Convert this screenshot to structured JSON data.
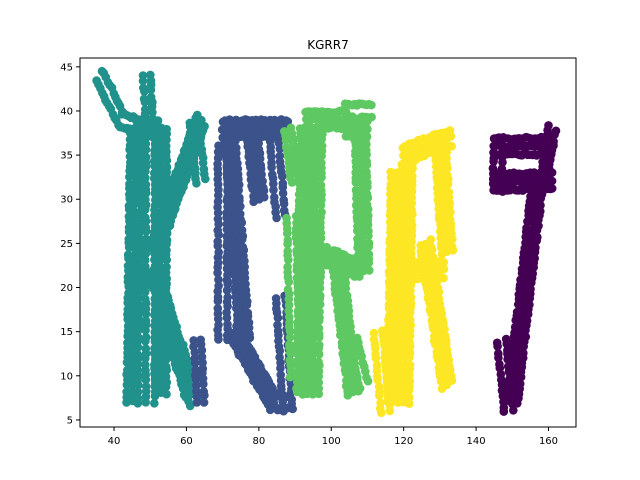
{
  "chart_data": {
    "type": "scatter",
    "title": "KGRR7",
    "xlabel": "",
    "ylabel": "",
    "xlim": [
      30.6,
      167.6
    ],
    "ylim": [
      4.2,
      46.0
    ],
    "xticks": [
      40,
      60,
      80,
      100,
      120,
      140,
      160
    ],
    "yticks": [
      5,
      10,
      15,
      20,
      25,
      30,
      35,
      40,
      45
    ],
    "grid": false,
    "legend": "none",
    "series": [
      {
        "color": "#21918c",
        "strokes": [
          {
            "from": [
              36,
              44
            ],
            "to": [
              42,
              39
            ],
            "width": 2.5
          },
          {
            "from": [
              42,
              39
            ],
            "to": [
              48,
              38
            ],
            "width": 2.5
          },
          {
            "from": [
              49,
              44
            ],
            "to": [
              50,
              38
            ],
            "width": 2.0
          },
          {
            "from": [
              46,
              38
            ],
            "to": [
              52,
              38
            ],
            "width": 3.0
          },
          {
            "from": [
              46,
              38
            ],
            "to": [
              45,
              7
            ],
            "width": 3.0
          },
          {
            "from": [
              53,
              38
            ],
            "to": [
              53,
              8
            ],
            "width": 3.0
          },
          {
            "from": [
              50,
              38
            ],
            "to": [
              50,
              7
            ],
            "width": 2.5
          },
          {
            "from": [
              51,
              24
            ],
            "to": [
              64,
              39
            ],
            "width": 3.0
          },
          {
            "from": [
              62,
              39
            ],
            "to": [
              64,
              32
            ],
            "width": 2.5
          },
          {
            "from": [
              51,
              22
            ],
            "to": [
              61,
              8
            ],
            "width": 3.0
          },
          {
            "from": [
              58,
              13
            ],
            "to": [
              62,
              7
            ],
            "width": 2.5
          }
        ]
      },
      {
        "color": "#3b528b",
        "strokes": [
          {
            "from": [
              70,
              38
            ],
            "to": [
              88,
              38
            ],
            "width": 3.0
          },
          {
            "from": [
              70,
              36
            ],
            "to": [
              70,
              14
            ],
            "width": 2.5
          },
          {
            "from": [
              72,
              37
            ],
            "to": [
              76,
              14
            ],
            "width": 3.0
          },
          {
            "from": [
              78,
              38
            ],
            "to": [
              80,
              30
            ],
            "width": 3.0
          },
          {
            "from": [
              84,
              38
            ],
            "to": [
              86,
              28
            ],
            "width": 2.5
          },
          {
            "from": [
              73,
              15
            ],
            "to": [
              84,
              7
            ],
            "width": 3.0
          },
          {
            "from": [
              84,
              7
            ],
            "to": [
              88,
              7
            ],
            "width": 2.5
          },
          {
            "from": [
              86,
              19
            ],
            "to": [
              88,
              6
            ],
            "width": 2.5
          },
          {
            "from": [
              63,
              14
            ],
            "to": [
              64,
              7
            ],
            "width": 2.0
          }
        ]
      },
      {
        "color": "#5ec962",
        "strokes": [
          {
            "from": [
              88,
              38
            ],
            "to": [
              90,
              32
            ],
            "width": 2.0
          },
          {
            "from": [
              93,
              39
            ],
            "to": [
              104,
              39
            ],
            "width": 3.0
          },
          {
            "from": [
              104,
              40
            ],
            "to": [
              111,
              40
            ],
            "width": 2.5
          },
          {
            "from": [
              93,
              38
            ],
            "to": [
              92,
              8
            ],
            "width": 3.0
          },
          {
            "from": [
              96,
              38
            ],
            "to": [
              95,
              8
            ],
            "width": 3.0
          },
          {
            "from": [
              89,
              28
            ],
            "to": [
              90,
              10
            ],
            "width": 2.5
          },
          {
            "from": [
              104,
              38
            ],
            "to": [
              110,
              38
            ],
            "width": 3.0
          },
          {
            "from": [
              108,
              38
            ],
            "to": [
              109,
              22
            ],
            "width": 3.0
          },
          {
            "from": [
              96,
              24
            ],
            "to": [
              108,
              22
            ],
            "width": 3.0
          },
          {
            "from": [
              102,
              22
            ],
            "to": [
              106,
              8
            ],
            "width": 3.0
          },
          {
            "from": [
              106,
              14
            ],
            "to": [
              109,
              9
            ],
            "width": 2.5
          }
        ]
      },
      {
        "color": "#fde725",
        "strokes": [
          {
            "from": [
              120,
              35
            ],
            "to": [
              133,
              37
            ],
            "width": 3.0
          },
          {
            "from": [
              118,
              33
            ],
            "to": [
              117,
              7
            ],
            "width": 3.0
          },
          {
            "from": [
              121,
              34
            ],
            "to": [
              120,
              7
            ],
            "width": 3.0
          },
          {
            "from": [
              130,
              37
            ],
            "to": [
              132,
              24
            ],
            "width": 3.0
          },
          {
            "from": [
              121,
              22
            ],
            "to": [
              131,
              22
            ],
            "width": 3.0
          },
          {
            "from": [
              126,
              25
            ],
            "to": [
              132,
              9
            ],
            "width": 3.0
          },
          {
            "from": [
              113,
              15
            ],
            "to": [
              115,
              6
            ],
            "width": 2.5
          }
        ]
      },
      {
        "color": "#440154",
        "strokes": [
          {
            "from": [
              145,
              36
            ],
            "to": [
              160,
              36
            ],
            "width": 3.0
          },
          {
            "from": [
              145,
              32
            ],
            "to": [
              161,
              32
            ],
            "width": 3.0
          },
          {
            "from": [
              146,
              36
            ],
            "to": [
              146,
              31
            ],
            "width": 2.5
          },
          {
            "from": [
              161,
              38
            ],
            "to": [
              159,
              33
            ],
            "width": 2.0
          },
          {
            "from": [
              157,
              32
            ],
            "to": [
              150,
              7
            ],
            "width": 3.0
          },
          {
            "from": [
              147,
              14
            ],
            "to": [
              149,
              6
            ],
            "width": 2.5
          }
        ]
      }
    ]
  }
}
